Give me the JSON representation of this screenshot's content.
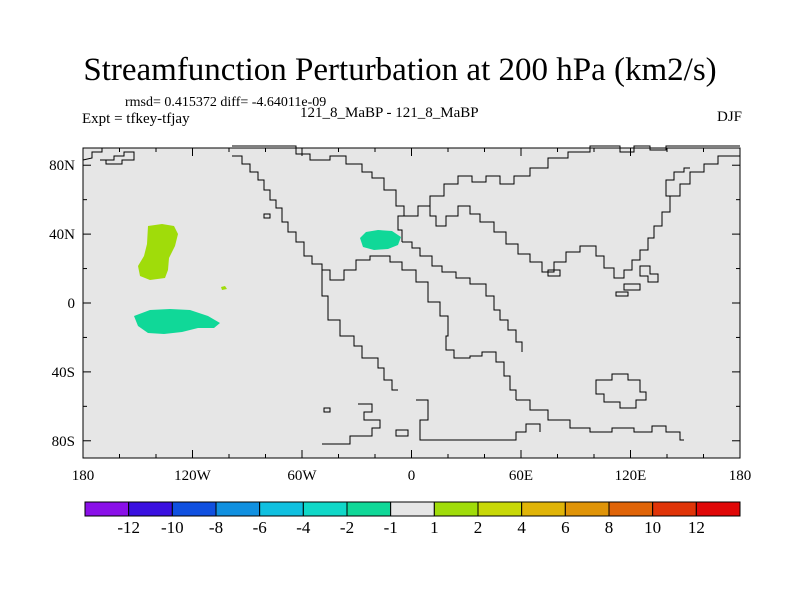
{
  "title": "Streamfunction Perturbation at 200 hPa (km2/s)",
  "stats_line": "rmsd= 0.415372 diff= -4.64011e-09",
  "experiment_label": "Expt = tfkey-tfjay",
  "case_label": "121_8_MaBP - 121_8_MaBP",
  "season_label": "DJF",
  "map": {
    "projection": "cylindrical equidistant",
    "background_color": "#e6e6e6",
    "lon_range": [
      -180,
      180
    ],
    "lat_range": [
      -90,
      90
    ],
    "x_ticks": [
      {
        "lon": -180,
        "label": "180"
      },
      {
        "lon": -120,
        "label": "120W"
      },
      {
        "lon": -60,
        "label": "60W"
      },
      {
        "lon": 0,
        "label": "0"
      },
      {
        "lon": 60,
        "label": "60E"
      },
      {
        "lon": 120,
        "label": "120E"
      },
      {
        "lon": 180,
        "label": "180"
      }
    ],
    "y_ticks": [
      {
        "lat": 80,
        "label": "80N"
      },
      {
        "lat": 40,
        "label": "40N"
      },
      {
        "lat": 0,
        "label": "0"
      },
      {
        "lat": -40,
        "label": "40S"
      },
      {
        "lat": -80,
        "label": "80S"
      }
    ],
    "shaded_regions": [
      {
        "name": "north-pacific-positive",
        "color": "#a0dc0a",
        "level": "1 to 2",
        "approx_center": {
          "lon": -140,
          "lat": 25
        }
      },
      {
        "name": "south-pacific-negative",
        "color": "#10d898",
        "level": "-2 to -1",
        "approx_center": {
          "lon": -135,
          "lat": -15
        }
      },
      {
        "name": "mediterranean-negative",
        "color": "#10d898",
        "level": "-2 to -1",
        "approx_center": {
          "lon": -17,
          "lat": 30
        }
      },
      {
        "name": "small-positive-speck",
        "color": "#a0dc0a",
        "level": "1 to 2",
        "approx_center": {
          "lon": -103,
          "lat": 4
        }
      }
    ]
  },
  "colorbar": {
    "colors": [
      "#8a10e8",
      "#3a10e0",
      "#1050e0",
      "#1090e0",
      "#10c0e0",
      "#10d8c8",
      "#10d898",
      "#e6e6e6",
      "#a0dc0a",
      "#c8d808",
      "#e0b408",
      "#e09408",
      "#e06408",
      "#e03408",
      "#e00808"
    ],
    "labels": [
      "-12",
      "-10",
      "-8",
      "-6",
      "-4",
      "-2",
      "-1",
      "1",
      "2",
      "4",
      "6",
      "8",
      "10",
      "12"
    ]
  }
}
